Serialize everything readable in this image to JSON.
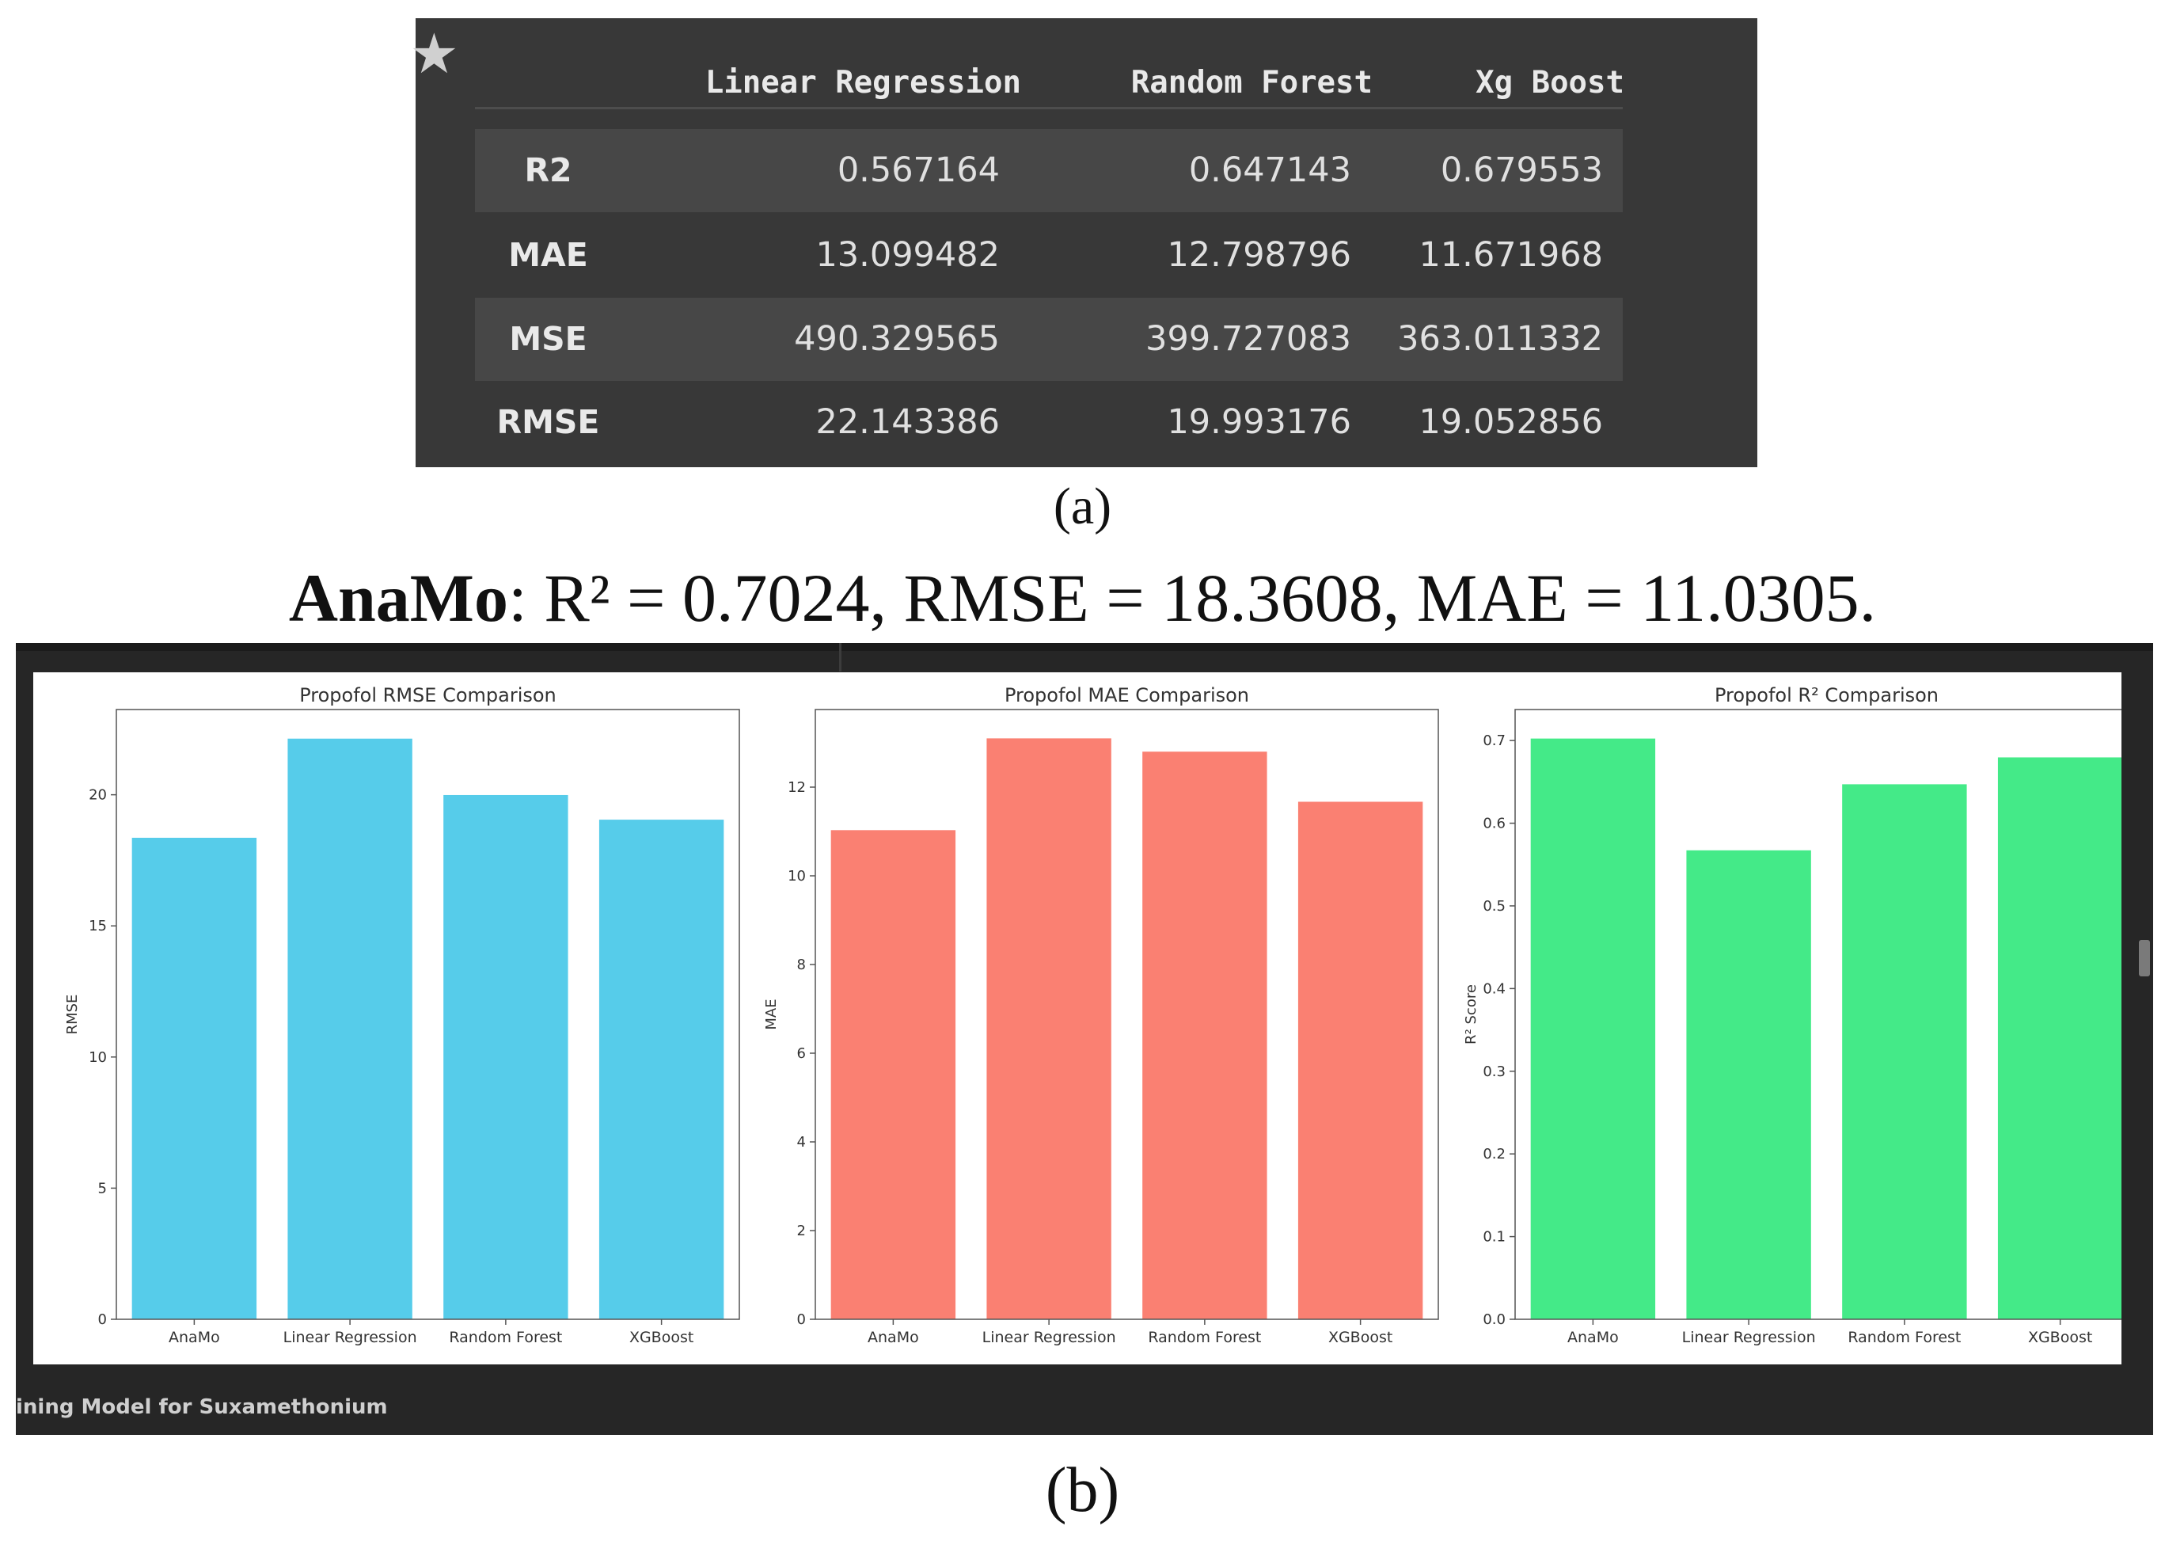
{
  "table": {
    "columns": [
      "Linear Regression",
      "Random Forest",
      "Xg Boost"
    ],
    "rows": [
      {
        "metric": "R2",
        "values": [
          "0.567164",
          "0.647143",
          "0.679553"
        ]
      },
      {
        "metric": "MAE",
        "values": [
          "13.099482",
          "12.798796",
          "11.671968"
        ]
      },
      {
        "metric": "MSE",
        "values": [
          "490.329565",
          "399.727083",
          "363.011332"
        ]
      },
      {
        "metric": "RMSE",
        "values": [
          "22.143386",
          "19.993176",
          "19.052856"
        ]
      }
    ]
  },
  "caption_a": "(a)",
  "summary": {
    "model": "AnaMo",
    "text": ": R² = 0.7024, RMSE = 18.3608, MAE = 11.0305."
  },
  "caption_b": "(b)",
  "footer_label": "ining Model for Suxamethonium",
  "chart_data": [
    {
      "type": "bar",
      "title": "Propofol RMSE Comparison",
      "xlabel": "",
      "ylabel": "RMSE",
      "categories": [
        "AnaMo",
        "Linear Regression",
        "Random Forest",
        "XGBoost"
      ],
      "values": [
        18.36,
        22.14,
        19.99,
        19.05
      ],
      "ylim": [
        0,
        23.25
      ],
      "yticks": [
        0,
        5,
        10,
        15,
        20
      ],
      "color": "#56CCEA"
    },
    {
      "type": "bar",
      "title": "Propofol MAE Comparison",
      "xlabel": "",
      "ylabel": "MAE",
      "categories": [
        "AnaMo",
        "Linear Regression",
        "Random Forest",
        "XGBoost"
      ],
      "values": [
        11.03,
        13.1,
        12.8,
        11.67
      ],
      "ylim": [
        0,
        13.75
      ],
      "yticks": [
        0,
        2,
        4,
        6,
        8,
        10,
        12
      ],
      "color": "#FA8072"
    },
    {
      "type": "bar",
      "title": "Propofol R² Comparison",
      "xlabel": "",
      "ylabel": "R² Score",
      "categories": [
        "AnaMo",
        "Linear Regression",
        "Random Forest",
        "XGBoost"
      ],
      "values": [
        0.7024,
        0.5672,
        0.6471,
        0.6796
      ],
      "ylim": [
        0,
        0.7375
      ],
      "yticks": [
        0.0,
        0.1,
        0.2,
        0.3,
        0.4,
        0.5,
        0.6,
        0.7
      ],
      "ytick_decimals": 1,
      "color": "#44EA88"
    }
  ]
}
